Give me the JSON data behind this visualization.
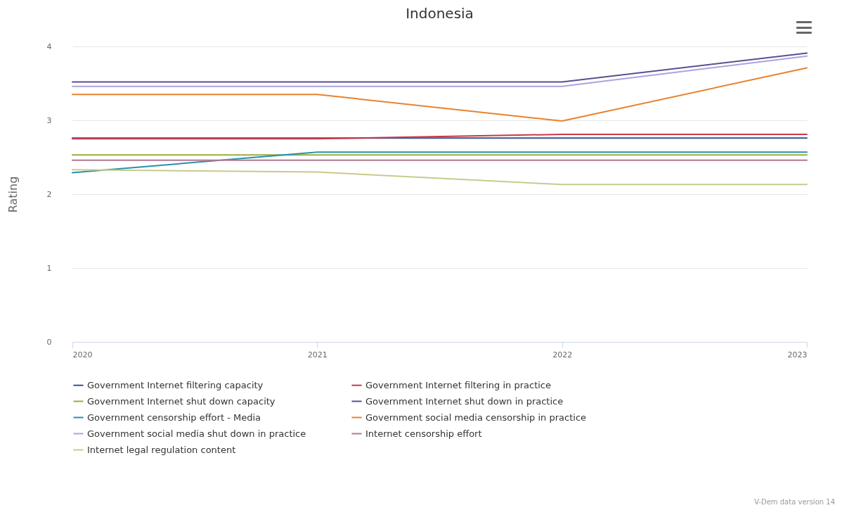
{
  "chart_data": {
    "type": "line",
    "title": "Indonesia",
    "ylabel": "Rating",
    "x": [
      2020,
      2021,
      2022,
      2023
    ],
    "xlim": [
      2020,
      2023
    ],
    "xticks": [
      2020,
      2021,
      2022,
      2023
    ],
    "ylim": [
      0,
      4
    ],
    "yticks": [
      0,
      1,
      2,
      3,
      4
    ],
    "grid": "y",
    "legend": "bottom",
    "annotations": [
      "V-Dem data version 14"
    ],
    "series": [
      {
        "name": "Government Internet filtering capacity",
        "color": "#34568b",
        "values": [
          2.76,
          2.76,
          2.76,
          2.76
        ]
      },
      {
        "name": "Government Internet filtering in practice",
        "color": "#c8384a",
        "values": [
          2.75,
          2.75,
          2.81,
          2.81
        ]
      },
      {
        "name": "Government Internet shut down capacity",
        "color": "#9aae3a",
        "values": [
          2.53,
          2.53,
          2.53,
          2.53
        ]
      },
      {
        "name": "Government Internet shut down in practice",
        "color": "#5b4f8f",
        "values": [
          3.52,
          3.52,
          3.52,
          3.91
        ]
      },
      {
        "name": "Government censorship effort - Media",
        "color": "#2a8fb0",
        "values": [
          2.29,
          2.57,
          2.57,
          2.57
        ]
      },
      {
        "name": "Government social media censorship in practice",
        "color": "#e8822e",
        "values": [
          3.35,
          3.35,
          2.99,
          3.71
        ]
      },
      {
        "name": "Government social media shut down in practice",
        "color": "#a6a6e0",
        "values": [
          3.46,
          3.46,
          3.46,
          3.87
        ]
      },
      {
        "name": "Internet censorship effort",
        "color": "#b07a8e",
        "values": [
          2.46,
          2.46,
          2.46,
          2.46
        ]
      },
      {
        "name": "Internet legal regulation content",
        "color": "#c4cc8c",
        "values": [
          2.33,
          2.3,
          2.13,
          2.13
        ]
      }
    ]
  }
}
